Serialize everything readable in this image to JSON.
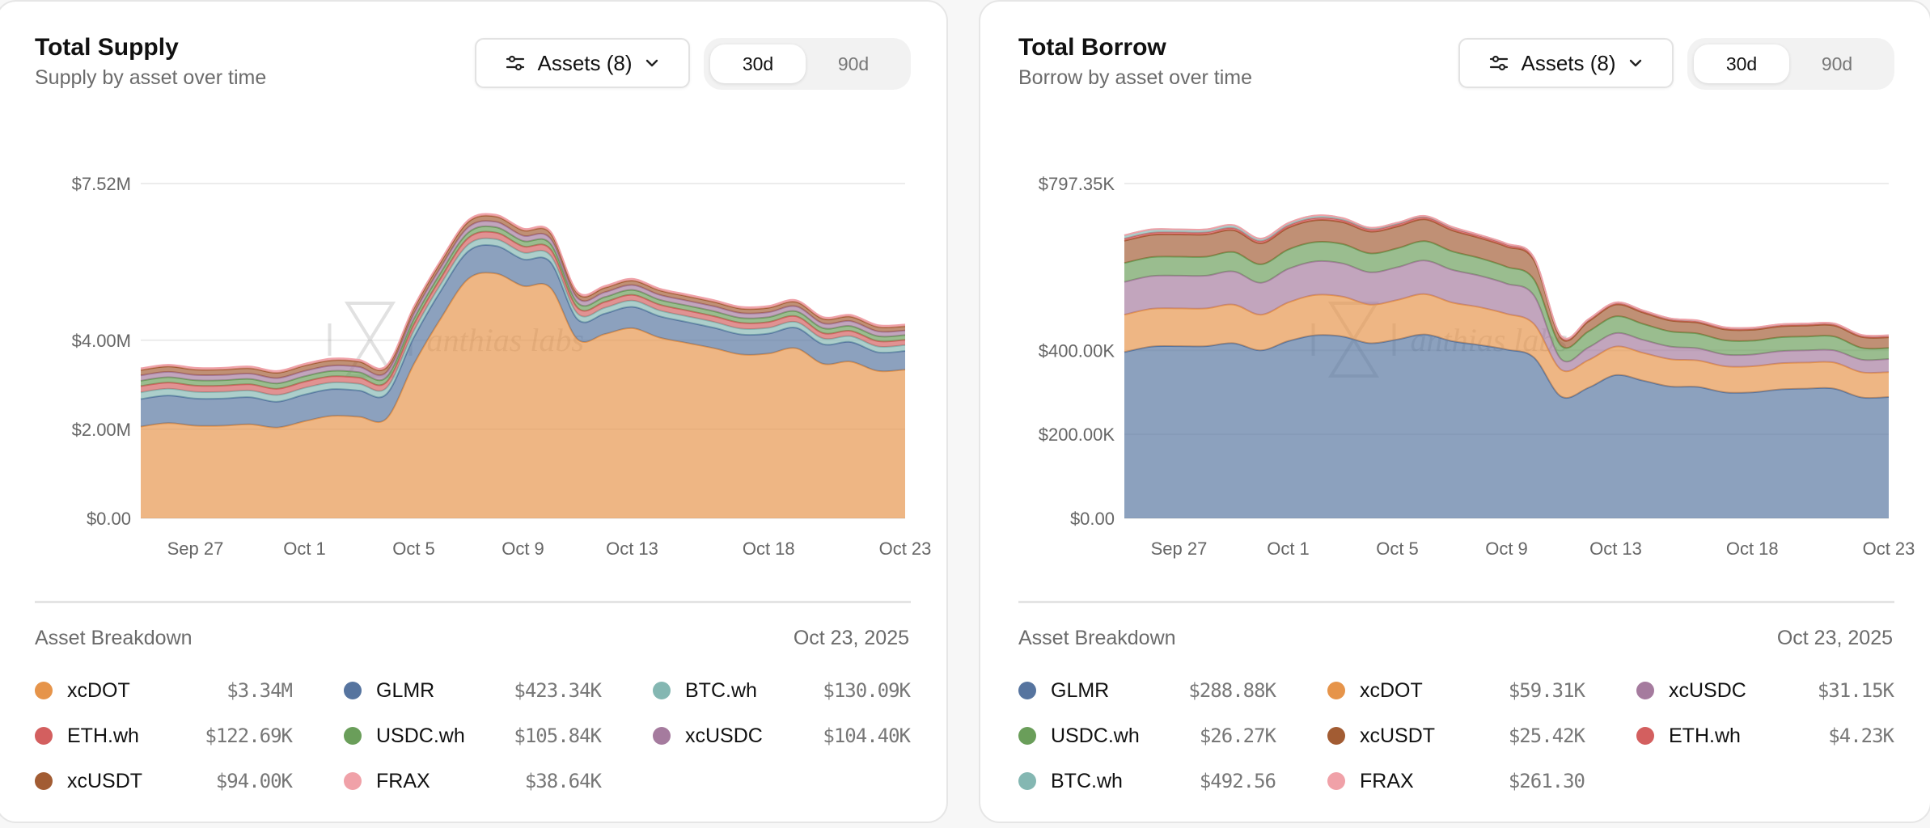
{
  "cards": [
    {
      "title": "Total Supply",
      "subtitle": "Supply by asset over time",
      "assets_button": "Assets (8)",
      "ranges": [
        "30d",
        "90d"
      ],
      "active_range": "30d",
      "watermark": "anthias labs",
      "breakdown": {
        "title": "Asset Breakdown",
        "date": "Oct 23, 2025",
        "items": [
          {
            "name": "xcDOT",
            "value": "$3.34M",
            "color": "#e6944a"
          },
          {
            "name": "GLMR",
            "value": "$423.34K",
            "color": "#56749f"
          },
          {
            "name": "BTC.wh",
            "value": "$130.09K",
            "color": "#84b7b2"
          },
          {
            "name": "ETH.wh",
            "value": "$122.69K",
            "color": "#d35f5f"
          },
          {
            "name": "USDC.wh",
            "value": "$105.84K",
            "color": "#6a9e5a"
          },
          {
            "name": "xcUSDC",
            "value": "$104.40K",
            "color": "#a57b9e"
          },
          {
            "name": "xcUSDT",
            "value": "$94.00K",
            "color": "#a25c33"
          },
          {
            "name": "FRAX",
            "value": "$38.64K",
            "color": "#f0a1a8"
          }
        ]
      }
    },
    {
      "title": "Total Borrow",
      "subtitle": "Borrow by asset over time",
      "assets_button": "Assets (8)",
      "ranges": [
        "30d",
        "90d"
      ],
      "active_range": "30d",
      "watermark": "anthias labs",
      "breakdown": {
        "title": "Asset Breakdown",
        "date": "Oct 23, 2025",
        "items": [
          {
            "name": "GLMR",
            "value": "$288.88K",
            "color": "#56749f"
          },
          {
            "name": "xcDOT",
            "value": "$59.31K",
            "color": "#e6944a"
          },
          {
            "name": "xcUSDC",
            "value": "$31.15K",
            "color": "#a57b9e"
          },
          {
            "name": "USDC.wh",
            "value": "$26.27K",
            "color": "#6a9e5a"
          },
          {
            "name": "xcUSDT",
            "value": "$25.42K",
            "color": "#a25c33"
          },
          {
            "name": "ETH.wh",
            "value": "$4.23K",
            "color": "#d35f5f"
          },
          {
            "name": "BTC.wh",
            "value": "$492.56",
            "color": "#84b7b2"
          },
          {
            "name": "FRAX",
            "value": "$261.30",
            "color": "#f0a1a8"
          }
        ]
      }
    }
  ],
  "chart_data": [
    {
      "type": "area",
      "stacked": true,
      "title": "Total Supply",
      "unit": "USD millions",
      "x": [
        "Sep 25",
        "Sep 26",
        "Sep 27",
        "Sep 28",
        "Sep 29",
        "Sep 30",
        "Oct 1",
        "Oct 2",
        "Oct 3",
        "Oct 4",
        "Oct 5",
        "Oct 6",
        "Oct 7",
        "Oct 8",
        "Oct 9",
        "Oct 10",
        "Oct 11",
        "Oct 12",
        "Oct 13",
        "Oct 14",
        "Oct 15",
        "Oct 16",
        "Oct 17",
        "Oct 18",
        "Oct 19",
        "Oct 20",
        "Oct 21",
        "Oct 22",
        "Oct 23"
      ],
      "x_ticks": [
        "Sep 27",
        "Oct 1",
        "Oct 5",
        "Oct 9",
        "Oct 13",
        "Oct 18",
        "Oct 23"
      ],
      "y_ticks": [
        {
          "value": 0,
          "label": "$0.00"
        },
        {
          "value": 2,
          "label": "$2.00M"
        },
        {
          "value": 4,
          "label": "$4.00M"
        },
        {
          "value": 7.52,
          "label": "$7.52M"
        }
      ],
      "ylim": [
        0,
        7.52
      ],
      "grid": true,
      "series": [
        {
          "name": "xcDOT",
          "color": "#e6944a",
          "values": [
            2.06,
            2.14,
            2.08,
            2.08,
            2.11,
            2.04,
            2.18,
            2.3,
            2.28,
            2.24,
            3.46,
            4.5,
            5.38,
            5.5,
            5.22,
            5.18,
            4.02,
            4.14,
            4.27,
            4.06,
            3.94,
            3.82,
            3.68,
            3.7,
            3.82,
            3.47,
            3.52,
            3.31,
            3.34
          ]
        },
        {
          "name": "GLMR",
          "color": "#56749f",
          "values": [
            0.62,
            0.62,
            0.61,
            0.61,
            0.61,
            0.58,
            0.6,
            0.6,
            0.59,
            0.55,
            0.6,
            0.62,
            0.62,
            0.62,
            0.6,
            0.58,
            0.45,
            0.46,
            0.48,
            0.48,
            0.47,
            0.46,
            0.45,
            0.45,
            0.46,
            0.44,
            0.44,
            0.42,
            0.42
          ]
        },
        {
          "name": "BTC.wh",
          "color": "#84b7b2",
          "values": [
            0.15,
            0.15,
            0.15,
            0.15,
            0.15,
            0.15,
            0.15,
            0.15,
            0.15,
            0.14,
            0.15,
            0.15,
            0.15,
            0.15,
            0.15,
            0.15,
            0.13,
            0.13,
            0.14,
            0.13,
            0.13,
            0.13,
            0.13,
            0.13,
            0.13,
            0.13,
            0.13,
            0.13,
            0.13
          ]
        },
        {
          "name": "ETH.wh",
          "color": "#d35f5f",
          "values": [
            0.14,
            0.14,
            0.14,
            0.14,
            0.14,
            0.14,
            0.14,
            0.14,
            0.14,
            0.13,
            0.14,
            0.14,
            0.15,
            0.15,
            0.14,
            0.14,
            0.13,
            0.13,
            0.13,
            0.13,
            0.13,
            0.13,
            0.13,
            0.13,
            0.13,
            0.12,
            0.12,
            0.12,
            0.12
          ]
        },
        {
          "name": "USDC.wh",
          "color": "#6a9e5a",
          "values": [
            0.12,
            0.12,
            0.12,
            0.12,
            0.12,
            0.12,
            0.12,
            0.12,
            0.12,
            0.11,
            0.12,
            0.12,
            0.12,
            0.12,
            0.12,
            0.12,
            0.11,
            0.11,
            0.11,
            0.11,
            0.11,
            0.11,
            0.11,
            0.11,
            0.11,
            0.11,
            0.11,
            0.11,
            0.106
          ]
        },
        {
          "name": "xcUSDC",
          "color": "#a57b9e",
          "values": [
            0.12,
            0.12,
            0.12,
            0.12,
            0.12,
            0.12,
            0.12,
            0.12,
            0.12,
            0.11,
            0.12,
            0.12,
            0.12,
            0.12,
            0.12,
            0.12,
            0.11,
            0.11,
            0.11,
            0.11,
            0.11,
            0.11,
            0.11,
            0.11,
            0.11,
            0.11,
            0.11,
            0.11,
            0.104
          ]
        },
        {
          "name": "xcUSDT",
          "color": "#a25c33",
          "values": [
            0.12,
            0.12,
            0.12,
            0.12,
            0.12,
            0.12,
            0.12,
            0.12,
            0.12,
            0.11,
            0.12,
            0.12,
            0.12,
            0.12,
            0.12,
            0.12,
            0.1,
            0.1,
            0.1,
            0.1,
            0.1,
            0.1,
            0.1,
            0.1,
            0.1,
            0.1,
            0.1,
            0.1,
            0.094
          ]
        },
        {
          "name": "FRAX",
          "color": "#f0a1a8",
          "values": [
            0.04,
            0.04,
            0.04,
            0.04,
            0.04,
            0.04,
            0.04,
            0.04,
            0.04,
            0.04,
            0.04,
            0.04,
            0.04,
            0.04,
            0.04,
            0.04,
            0.04,
            0.04,
            0.04,
            0.04,
            0.04,
            0.04,
            0.04,
            0.04,
            0.04,
            0.04,
            0.04,
            0.04,
            0.039
          ]
        }
      ]
    },
    {
      "type": "area",
      "stacked": true,
      "title": "Total Borrow",
      "unit": "USD thousands",
      "x": [
        "Sep 25",
        "Sep 26",
        "Sep 27",
        "Sep 28",
        "Sep 29",
        "Sep 30",
        "Oct 1",
        "Oct 2",
        "Oct 3",
        "Oct 4",
        "Oct 5",
        "Oct 6",
        "Oct 7",
        "Oct 8",
        "Oct 9",
        "Oct 10",
        "Oct 11",
        "Oct 12",
        "Oct 13",
        "Oct 14",
        "Oct 15",
        "Oct 16",
        "Oct 17",
        "Oct 18",
        "Oct 19",
        "Oct 20",
        "Oct 21",
        "Oct 22",
        "Oct 23"
      ],
      "x_ticks": [
        "Sep 27",
        "Oct 1",
        "Oct 5",
        "Oct 9",
        "Oct 13",
        "Oct 18",
        "Oct 23"
      ],
      "y_ticks": [
        {
          "value": 0,
          "label": "$0.00"
        },
        {
          "value": 200,
          "label": "$200.00K"
        },
        {
          "value": 400,
          "label": "$400.00K"
        },
        {
          "value": 797.35,
          "label": "$797.35K"
        }
      ],
      "ylim": [
        0,
        797.35
      ],
      "grid": true,
      "series": [
        {
          "name": "GLMR",
          "color": "#56749f",
          "values": [
            396,
            409,
            410,
            410,
            417,
            400,
            422,
            436,
            433,
            417,
            426,
            438,
            422,
            413,
            402,
            383,
            290,
            311,
            341,
            328,
            314,
            313,
            300,
            300,
            307,
            309,
            309,
            288,
            288.88
          ]
        },
        {
          "name": "xcDOT",
          "color": "#e6944a",
          "values": [
            89,
            90,
            90,
            90,
            92,
            85,
            92,
            96,
            95,
            92,
            94,
            96,
            92,
            90,
            85,
            80,
            64,
            66,
            68,
            66,
            65,
            63,
            62,
            62,
            62,
            62,
            62,
            60,
            59.31
          ]
        },
        {
          "name": "xcUSDC",
          "color": "#a57b9e",
          "values": [
            78,
            78,
            78,
            78,
            79,
            76,
            80,
            80,
            79,
            77,
            78,
            80,
            78,
            75,
            72,
            68,
            25,
            30,
            32,
            31,
            30,
            29,
            28,
            28,
            29,
            29,
            29,
            30,
            31.15
          ]
        },
        {
          "name": "USDC.wh",
          "color": "#6a9e5a",
          "values": [
            45,
            45,
            45,
            45,
            46,
            44,
            46,
            46,
            46,
            45,
            45,
            46,
            44,
            42,
            40,
            38,
            32,
            38,
            40,
            38,
            36,
            35,
            34,
            33,
            33,
            33,
            33,
            28,
            26.27
          ]
        },
        {
          "name": "xcUSDT",
          "color": "#a25c33",
          "values": [
            53,
            53,
            53,
            53,
            52,
            50,
            52,
            52,
            52,
            52,
            52,
            52,
            50,
            48,
            48,
            46,
            18,
            24,
            28,
            27,
            26,
            26,
            26,
            26,
            26,
            26,
            26,
            26,
            25.42
          ]
        },
        {
          "name": "ETH.wh",
          "color": "#d35f5f",
          "values": [
            5,
            5,
            5,
            5,
            5,
            5,
            5,
            5,
            5,
            5,
            5,
            5,
            5,
            5,
            5,
            5,
            4.5,
            4.5,
            4.5,
            4.4,
            4.4,
            4.4,
            4.3,
            4.3,
            4.3,
            4.3,
            4.3,
            4.2,
            4.23
          ]
        },
        {
          "name": "BTC.wh",
          "color": "#84b7b2",
          "values": [
            8,
            8,
            7,
            7,
            7,
            6,
            6,
            6,
            5,
            4,
            4,
            3,
            3,
            2,
            2,
            1,
            0.5,
            0.5,
            0.5,
            0.5,
            0.5,
            0.5,
            0.5,
            0.5,
            0.5,
            0.5,
            0.5,
            0.5,
            0.49
          ]
        },
        {
          "name": "FRAX",
          "color": "#f0a1a8",
          "values": [
            0.3,
            0.3,
            0.3,
            0.3,
            0.3,
            0.3,
            0.3,
            0.3,
            0.3,
            0.3,
            0.3,
            0.3,
            0.3,
            0.3,
            0.3,
            0.3,
            0.3,
            0.3,
            0.3,
            0.3,
            0.3,
            0.3,
            0.3,
            0.3,
            0.3,
            0.3,
            0.3,
            0.3,
            0.26
          ]
        }
      ]
    }
  ]
}
